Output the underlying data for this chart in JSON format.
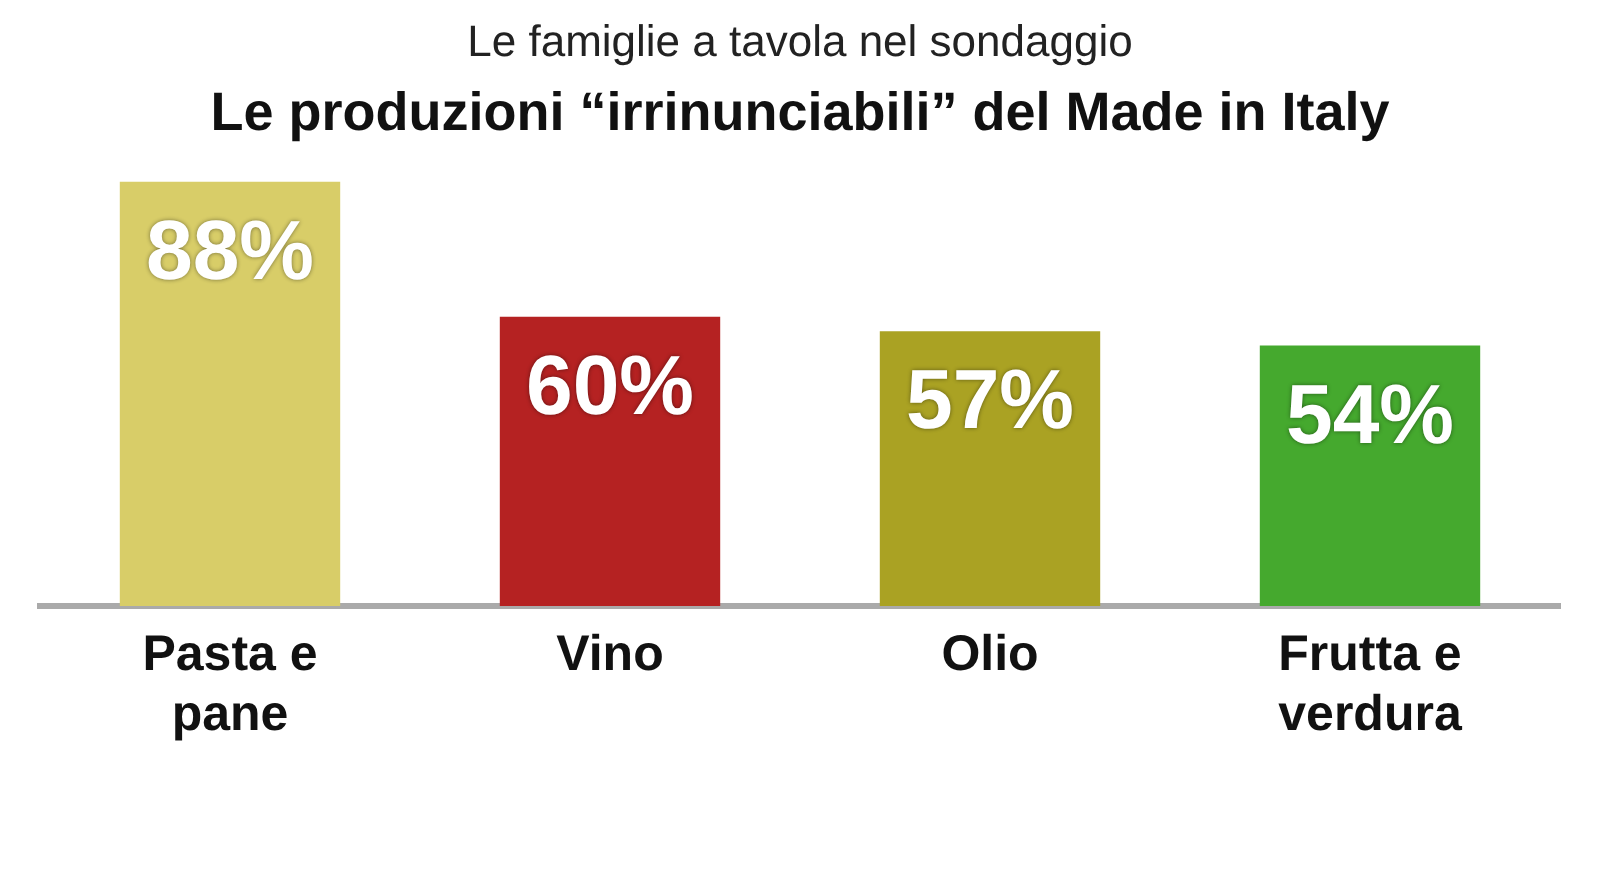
{
  "chart_data": {
    "type": "bar",
    "subtitle": "Le famiglie a tavola nel sondaggio",
    "title": "Le produzioni “irrinunciabili” del Made in Italy",
    "categories": [
      "Pasta e pane",
      "Vino",
      "Olio",
      "Frutta e verdura"
    ],
    "values": [
      88,
      60,
      57,
      54
    ],
    "colors": [
      "#d8cd68",
      "#b52222",
      "#aaa223",
      "#45a92e"
    ],
    "value_labels": [
      "88%",
      "60%",
      "57%",
      "54%"
    ],
    "legend": false,
    "grid": false
  }
}
